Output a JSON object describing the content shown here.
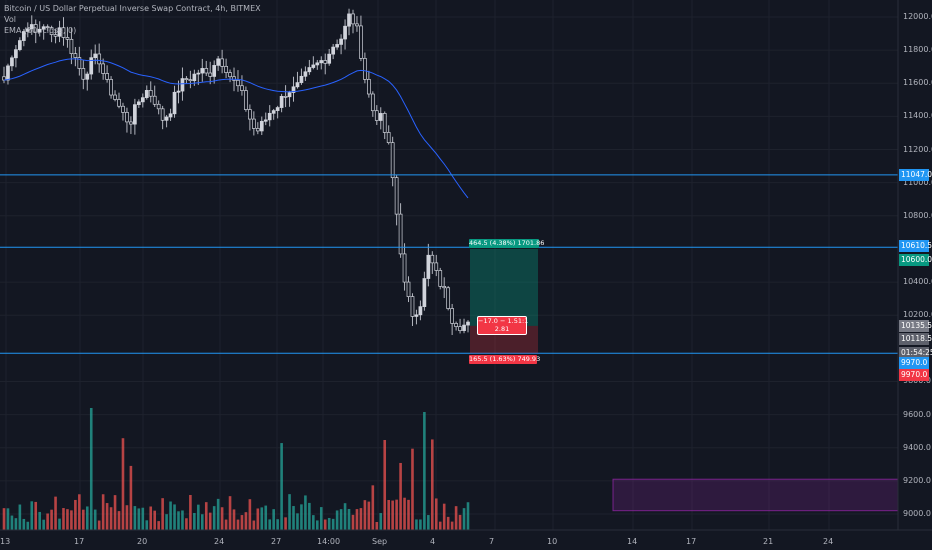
{
  "legend": {
    "symbol": "Bitcoin / US Dollar Perpetual Inverse Swap Contract, 4h, BITMEX",
    "vol": "Vol",
    "ema": "EMA (50, close, 0)"
  },
  "y_axis": {
    "ticks": [
      "12000.0",
      "11800.0",
      "11600.0",
      "11400.0",
      "11200.0",
      "11000.0",
      "10800.0",
      "10400.0",
      "10200.0",
      "9800.0",
      "9600.0",
      "9400.0",
      "9200.0",
      "9000.0"
    ]
  },
  "x_axis": {
    "ticks": [
      "13",
      "17",
      "20",
      "24",
      "27",
      "14:00",
      "Sep",
      "4",
      "7",
      "10",
      "14",
      "17",
      "21",
      "24"
    ]
  },
  "price_tags": [
    {
      "text": "11047.0",
      "color": "#2196f3"
    },
    {
      "text": "10610.5",
      "color": "#2196f3"
    },
    {
      "text": "10600.0",
      "color": "#089981"
    },
    {
      "text": "10135.5",
      "color": "#787b86"
    },
    {
      "text": "10118.5",
      "color": "#5d606b"
    },
    {
      "text": "01:54:25",
      "color": "#5d606b"
    },
    {
      "text": "9970.0",
      "color": "#2196f3"
    },
    {
      "text": "9970.0",
      "color": "#f23645"
    }
  ],
  "position": {
    "target_label": "464.5 (4.38%) 1701.86",
    "center_label_1": "−17.0 − 1.51:1",
    "center_label_2": "2.81",
    "stop_label": "165.5 (1.63%) 749.93"
  },
  "colors": {
    "background": "#131722",
    "up": "#d1d4dc",
    "down": "#d1d4dc",
    "vol_up": "#26a69a",
    "vol_down": "#ef5350",
    "ema": "#2962ff",
    "hline": "#2196f3",
    "target": "#089981",
    "stop": "#f23645",
    "purple_box": "#9c27b0"
  },
  "chart_data": {
    "type": "candlestick",
    "title": "Bitcoin / US Dollar Perpetual Inverse Swap Contract, 4h, BITMEX",
    "ylim": [
      8950,
      12070
    ],
    "horizontal_levels": [
      11047.0,
      10610.5,
      9970.0
    ],
    "purple_zone": {
      "from_label": "14",
      "to_label": "beyond 24",
      "low": 9020,
      "high": 9210
    },
    "close_path": [
      11620,
      11780,
      11860,
      11960,
      11900,
      11960,
      11880,
      11940,
      11860,
      11760,
      11640,
      11720,
      11760,
      11600,
      11520,
      11420,
      11360,
      11480,
      11560,
      11520,
      11380,
      11420,
      11560,
      11620,
      11640,
      11680,
      11640,
      11760,
      11720,
      11620,
      11560,
      11420,
      11300,
      11360,
      11440,
      11480,
      11560,
      11560,
      11620,
      11680,
      11720,
      11760,
      11840,
      11880,
      12020,
      11900,
      11600,
      11420,
      11380,
      11200,
      10780,
      10350,
      10200,
      10280,
      10560,
      10440,
      10340,
      10180,
      10140,
      10135.5
    ]
  }
}
